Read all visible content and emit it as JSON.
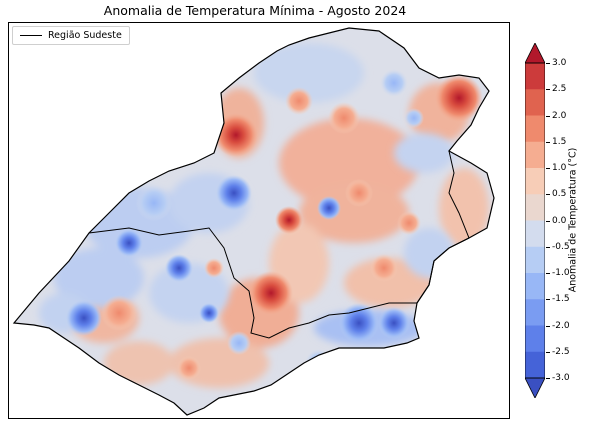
{
  "title": "Anomalia de Temperatura Mínima - Agosto 2024",
  "legend": {
    "label": "Região Sudeste",
    "line_color": "#000000"
  },
  "colorbar": {
    "label": "Anomalia de Temperatura (°C)",
    "ticks": [
      "3.0",
      "2.5",
      "2.0",
      "1.5",
      "1.0",
      "0.5",
      "0.0",
      "-0.5",
      "-1.0",
      "-1.5",
      "-2.0",
      "-2.5",
      "-3.0"
    ],
    "colors": [
      "#b2182b",
      "#cc3b3b",
      "#e0634f",
      "#ef8a6d",
      "#f5ad91",
      "#f7cdb7",
      "#ead7cf",
      "#d3dcee",
      "#b6cdf4",
      "#98b7f6",
      "#7a9cf2",
      "#5e80ea",
      "#4563d8",
      "#3a50c2"
    ]
  },
  "map": {
    "region": "Região Sudeste",
    "hotspots_color_scale": "coolwarm"
  }
}
